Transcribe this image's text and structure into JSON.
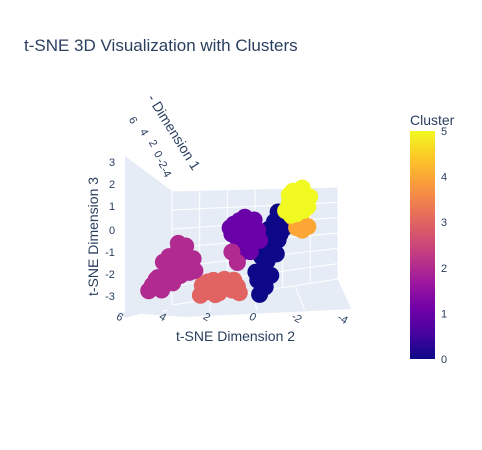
{
  "title": "t-SNE 3D Visualization with Clusters",
  "chart_data": {
    "type": "scatter3d",
    "title": "t-SNE 3D Visualization with Clusters",
    "axes": {
      "x": {
        "label": "t-SNE Dimension 1",
        "label_visible": "- Dimension 1",
        "ticks": [
          "6",
          "4",
          "2",
          "0",
          "-2",
          "-4"
        ],
        "range": [
          -4,
          6
        ]
      },
      "y": {
        "label": "t-SNE Dimension 2",
        "ticks": [
          "6",
          "4",
          "2",
          "0",
          "-2",
          "-4"
        ],
        "range": [
          -4,
          6
        ]
      },
      "z": {
        "label": "t-SNE Dimension 3",
        "ticks": [
          "3",
          "2",
          "1",
          "0",
          "-1",
          "-2",
          "-3"
        ],
        "range": [
          -3,
          3
        ]
      }
    },
    "color_key": "Cluster",
    "colorscale": [
      "#0d0887",
      "#46039f",
      "#7201a8",
      "#9c179e",
      "#bd3786",
      "#d8576b",
      "#ed7953",
      "#fb9f3a",
      "#fdca26",
      "#f0f921"
    ],
    "colorbar": {
      "title": "Cluster",
      "ticks": [
        "0",
        "1",
        "2",
        "3",
        "4",
        "5"
      ],
      "range": [
        0,
        5
      ]
    },
    "clusters": [
      {
        "cluster": 0,
        "color": "#0d0887",
        "points": [
          {
            "y": -1.6,
            "z": 0.9
          },
          {
            "y": -1.9,
            "z": 0.5
          },
          {
            "y": -1.4,
            "z": 0.2
          },
          {
            "y": -1.8,
            "z": -0.2
          },
          {
            "y": -1.3,
            "z": -0.6
          },
          {
            "y": -1.7,
            "z": 1.4
          },
          {
            "y": -2.2,
            "z": 1.1
          },
          {
            "y": -1.1,
            "z": -1.0
          },
          {
            "y": -1.5,
            "z": -1.3
          },
          {
            "y": -0.8,
            "z": -1.6
          },
          {
            "y": -0.9,
            "z": -2.3
          },
          {
            "y": -1.2,
            "z": -1.9
          },
          {
            "y": -2.0,
            "z": 0.8
          },
          {
            "y": -1.6,
            "z": 0.0
          },
          {
            "y": -2.3,
            "z": 1.6
          },
          {
            "y": -1.0,
            "z": -0.4
          },
          {
            "y": -0.7,
            "z": -1.2
          },
          {
            "y": -1.9,
            "z": 1.9
          },
          {
            "y": -1.4,
            "z": 1.0
          },
          {
            "y": -1.2,
            "z": 0.5
          }
        ]
      },
      {
        "cluster": 1,
        "color": "#6a00a8",
        "points": [
          {
            "y": 0.4,
            "z": 0.9
          },
          {
            "y": 0.1,
            "z": 1.0
          },
          {
            "y": -0.2,
            "z": 0.8
          },
          {
            "y": 0.3,
            "z": 0.4
          },
          {
            "y": -0.4,
            "z": 0.6
          },
          {
            "y": 0.6,
            "z": 0.6
          },
          {
            "y": 0.0,
            "z": 0.3
          },
          {
            "y": -0.5,
            "z": 0.2
          },
          {
            "y": 0.2,
            "z": 1.3
          },
          {
            "y": -0.3,
            "z": 1.2
          },
          {
            "y": 0.5,
            "z": 1.1
          },
          {
            "y": -0.8,
            "z": 0.9
          },
          {
            "y": -0.6,
            "z": 1.4
          },
          {
            "y": 0.1,
            "z": 0.6
          },
          {
            "y": -0.1,
            "z": 1.5
          },
          {
            "y": 0.7,
            "z": 0.9
          },
          {
            "y": -0.9,
            "z": 0.4
          },
          {
            "y": -0.4,
            "z": -0.2
          },
          {
            "y": 0.2,
            "z": -0.4
          },
          {
            "y": -0.2,
            "z": 0.0
          }
        ]
      },
      {
        "cluster": 2,
        "color": "#b12a90",
        "points": [
          {
            "y": 3.4,
            "z": -0.9
          },
          {
            "y": 3.7,
            "z": -1.3
          },
          {
            "y": 4.1,
            "z": -1.5
          },
          {
            "y": 4.6,
            "z": -1.9
          },
          {
            "y": 4.9,
            "z": -2.3
          },
          {
            "y": 3.2,
            "z": -0.4
          },
          {
            "y": 3.0,
            "z": -1.1
          },
          {
            "y": 3.6,
            "z": -0.6
          },
          {
            "y": 4.3,
            "z": -1.1
          },
          {
            "y": 3.9,
            "z": -1.8
          },
          {
            "y": 2.7,
            "z": -0.8
          },
          {
            "y": 2.9,
            "z": -1.5
          },
          {
            "y": 3.4,
            "z": -1.7
          },
          {
            "y": 4.4,
            "z": -2.5
          },
          {
            "y": 5.1,
            "z": -2.6
          },
          {
            "y": 3.5,
            "z": -0.1
          },
          {
            "y": 3.1,
            "z": -0.2
          },
          {
            "y": 2.6,
            "z": -1.4
          },
          {
            "y": 4.0,
            "z": -0.8
          },
          {
            "y": 3.8,
            "z": -2.1
          },
          {
            "y": 0.3,
            "z": -0.8
          },
          {
            "y": 0.6,
            "z": -0.3
          },
          {
            "y": 4.7,
            "z": -2.0
          },
          {
            "y": 3.3,
            "z": -1.2
          }
        ]
      },
      {
        "cluster": 3,
        "color": "#e16462",
        "points": [
          {
            "y": 1.7,
            "z": -2.2
          },
          {
            "y": 1.4,
            "z": -2.0
          },
          {
            "y": 1.1,
            "z": -2.1
          },
          {
            "y": 1.9,
            "z": -1.9
          },
          {
            "y": 1.3,
            "z": -2.4
          },
          {
            "y": 2.0,
            "z": -2.4
          },
          {
            "y": 1.6,
            "z": -1.8
          },
          {
            "y": 0.8,
            "z": -1.9
          },
          {
            "y": 0.6,
            "z": -2.2
          },
          {
            "y": 2.2,
            "z": -2.1
          },
          {
            "y": 1.0,
            "z": -1.7
          },
          {
            "y": 0.3,
            "z": -2.0
          },
          {
            "y": 1.5,
            "z": -2.5
          },
          {
            "y": 2.3,
            "z": -2.6
          },
          {
            "y": 0.2,
            "z": -2.3
          },
          {
            "y": 0.5,
            "z": -1.7
          }
        ]
      },
      {
        "cluster": 4,
        "color": "#fca636",
        "points": [
          {
            "y": -2.9,
            "z": 1.2
          },
          {
            "y": -3.2,
            "z": 1.1
          },
          {
            "y": -3.1,
            "z": 1.6
          },
          {
            "y": -2.7,
            "z": 1.7
          },
          {
            "y": -3.5,
            "z": 1.3
          }
        ]
      },
      {
        "cluster": 5,
        "color": "#f0f921",
        "points": [
          {
            "y": -2.8,
            "z": 2.6
          },
          {
            "y": -3.1,
            "z": 2.9
          },
          {
            "y": -2.5,
            "z": 2.4
          },
          {
            "y": -3.4,
            "z": 2.5
          },
          {
            "y": -2.7,
            "z": 3.0
          },
          {
            "y": -3.0,
            "z": 2.2
          },
          {
            "y": -2.3,
            "z": 2.0
          },
          {
            "y": -3.6,
            "z": 2.8
          },
          {
            "y": -2.9,
            "z": 1.9
          },
          {
            "y": -3.3,
            "z": 2.1
          },
          {
            "y": -2.5,
            "z": 2.8
          },
          {
            "y": -3.2,
            "z": 3.2
          },
          {
            "y": -2.6,
            "z": 1.8
          },
          {
            "y": -3.5,
            "z": 2.3
          }
        ]
      }
    ]
  }
}
